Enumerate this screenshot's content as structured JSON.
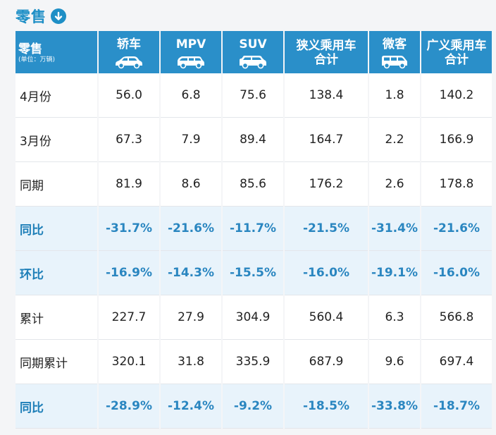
{
  "title": "零售",
  "table": {
    "corner_label": "零售",
    "corner_unit": "(单位：万辆)",
    "columns": [
      {
        "label_line1": "轿车",
        "label_line2": "",
        "icon": "sedan-car-icon"
      },
      {
        "label_line1": "MPV",
        "label_line2": "",
        "icon": "mpv-car-icon"
      },
      {
        "label_line1": "SUV",
        "label_line2": "",
        "icon": "suv-car-icon"
      },
      {
        "label_line1": "狭义乘用车",
        "label_line2": "合计",
        "icon": ""
      },
      {
        "label_line1": "微客",
        "label_line2": "",
        "icon": "minivan-icon"
      },
      {
        "label_line1": "广义乘用车",
        "label_line2": "合计",
        "icon": ""
      }
    ],
    "rows": [
      {
        "label": "4月份",
        "style": "plain",
        "values": [
          "56.0",
          "6.8",
          "75.6",
          "138.4",
          "1.8",
          "140.2"
        ]
      },
      {
        "label": "3月份",
        "style": "plain",
        "values": [
          "67.3",
          "7.9",
          "89.4",
          "164.7",
          "2.2",
          "166.9"
        ]
      },
      {
        "label": "同期",
        "style": "plain",
        "values": [
          "81.9",
          "8.6",
          "85.6",
          "176.2",
          "2.6",
          "178.8"
        ]
      },
      {
        "label": "同比",
        "style": "pct",
        "values": [
          "-31.7%",
          "-21.6%",
          "-11.7%",
          "-21.5%",
          "-31.4%",
          "-21.6%"
        ]
      },
      {
        "label": "环比",
        "style": "pct",
        "values": [
          "-16.9%",
          "-14.3%",
          "-15.5%",
          "-16.0%",
          "-19.1%",
          "-16.0%"
        ]
      },
      {
        "label": "累计",
        "style": "plain",
        "values": [
          "227.7",
          "27.9",
          "304.9",
          "560.4",
          "6.3",
          "566.8"
        ]
      },
      {
        "label": "同期累计",
        "style": "plain",
        "values": [
          "320.1",
          "31.8",
          "335.9",
          "687.9",
          "9.6",
          "697.4"
        ]
      },
      {
        "label": "同比",
        "style": "pct",
        "values": [
          "-28.9%",
          "-12.4%",
          "-9.2%",
          "-18.5%",
          "-33.8%",
          "-18.7%"
        ]
      }
    ]
  },
  "colors": {
    "header_bg": "#2a8fc9",
    "pct_row_bg": "#e8f3fb",
    "pct_text": "#2a86c0",
    "title": "#1e8fc6"
  }
}
